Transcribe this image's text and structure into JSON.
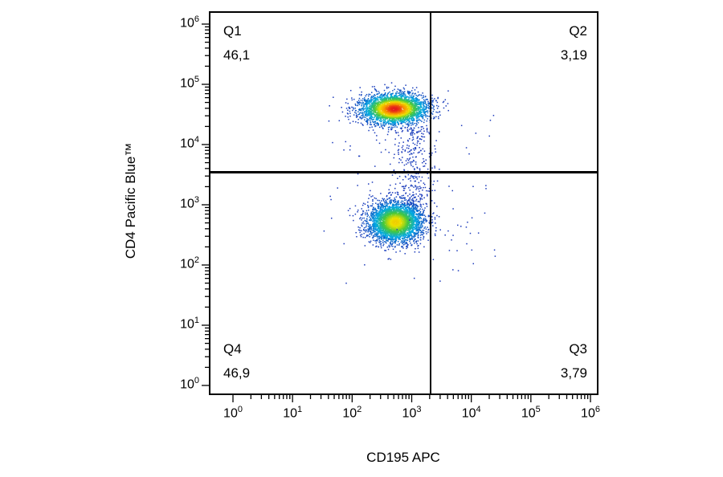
{
  "chart_data": {
    "type": "scatter",
    "subtype": "flow-cytometry-density-dot-plot",
    "title": "",
    "xlabel": "CD195 APC",
    "ylabel": "CD4 Pacific Blue™",
    "x_scale": "log",
    "y_scale": "log",
    "xlim": [
      1,
      1000000
    ],
    "ylim": [
      1,
      1000000
    ],
    "x_tick_exponents": [
      0,
      1,
      2,
      3,
      4,
      5,
      6
    ],
    "y_tick_exponents": [
      0,
      1,
      2,
      3,
      4,
      5,
      6
    ],
    "tick_base": "10",
    "grid": false,
    "legend": false,
    "gates": {
      "x_value": 2000,
      "y_value": 3500
    },
    "quadrants": [
      {
        "id": "Q1",
        "label": "Q1",
        "value": "46,1",
        "position": "top-left"
      },
      {
        "id": "Q2",
        "label": "Q2",
        "value": "3,19",
        "position": "top-right"
      },
      {
        "id": "Q3",
        "label": "Q3",
        "value": "3,79",
        "position": "bottom-right"
      },
      {
        "id": "Q4",
        "label": "Q4",
        "value": "46,9",
        "position": "bottom-left"
      }
    ],
    "colormap": "jet (blue = low density, red = high density)",
    "populations": [
      {
        "name": "upper-cluster-CD4-positive",
        "log_center": [
          2.7,
          4.6
        ],
        "log_sigma": [
          0.28,
          0.13
        ],
        "n": 3000,
        "color_cap": 1.0
      },
      {
        "name": "lower-cluster-CD4-negative",
        "log_center": [
          2.72,
          2.72
        ],
        "log_sigma": [
          0.23,
          0.17
        ],
        "n": 3400,
        "color_cap": 0.72
      },
      {
        "name": "inter-cluster-bridge",
        "log_center": [
          3.02,
          0
        ],
        "log_sigma": [
          0.16,
          0
        ],
        "uniform_y": true,
        "y_range": [
          3.0,
          4.32
        ],
        "n": 300,
        "color_cap": 0.2
      },
      {
        "name": "background-noise",
        "uniform": true,
        "x_range": [
          1.5,
          4.4
        ],
        "y_range": [
          1.7,
          4.85
        ],
        "n": 100,
        "color_cap": 0.1
      }
    ]
  }
}
